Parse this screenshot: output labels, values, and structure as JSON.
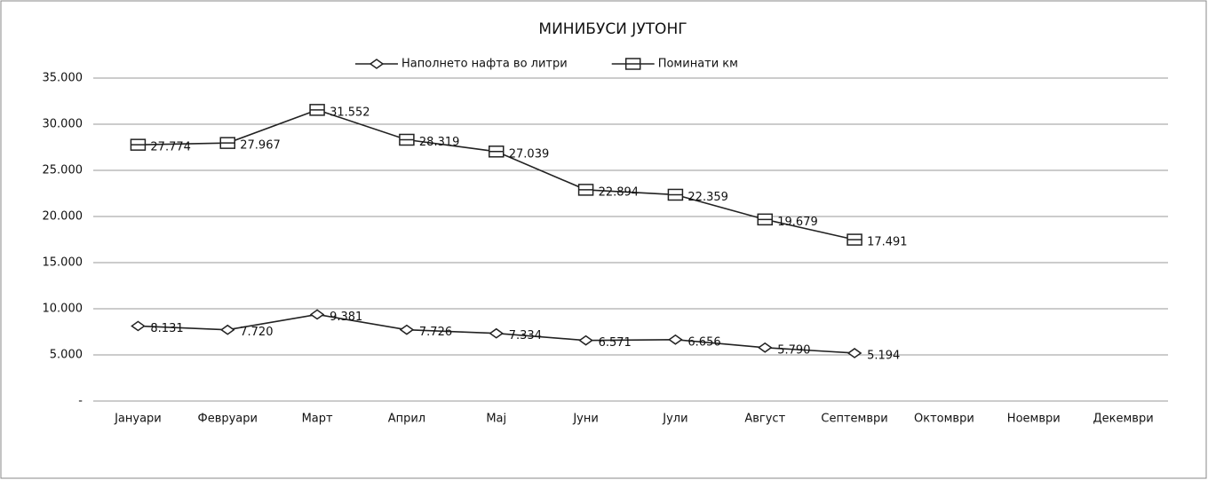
{
  "chart_data": {
    "type": "line",
    "title": "МИНИБУСИ ЈУТОНГ",
    "categories": [
      "Јануари",
      "Февруари",
      "Март",
      "Април",
      "Мај",
      "Јуни",
      "Јули",
      "Август",
      "Септември",
      "Октомври",
      "Ноември",
      "Декември"
    ],
    "series": [
      {
        "name": "Наполнето нафта во литри",
        "color": "#222222",
        "marker": "diamond",
        "values": [
          8131,
          7720,
          9381,
          7726,
          7334,
          6571,
          6656,
          5790,
          5194,
          null,
          null,
          null
        ],
        "value_labels": [
          "8.131",
          "7.720",
          "9.381",
          "7.726",
          "7.334",
          "6.571",
          "6.656",
          "5.790",
          "5.194",
          null,
          null,
          null
        ]
      },
      {
        "name": "Поминати км",
        "color": "#222222",
        "marker": "square",
        "values": [
          27774,
          27967,
          31552,
          28319,
          27039,
          22894,
          22359,
          19679,
          17491,
          null,
          null,
          null
        ],
        "value_labels": [
          "27.774",
          "27.967",
          "31.552",
          "28.319",
          "27.039",
          "22.894",
          "22.359",
          "19.679",
          "17.491",
          null,
          null,
          null
        ]
      }
    ],
    "ylim": [
      0,
      35000
    ],
    "yticks": [
      {
        "value": 0,
        "label": "-"
      },
      {
        "value": 5000,
        "label": "5.000"
      },
      {
        "value": 10000,
        "label": "10.000"
      },
      {
        "value": 15000,
        "label": "15.000"
      },
      {
        "value": 20000,
        "label": "20.000"
      },
      {
        "value": 25000,
        "label": "25.000"
      },
      {
        "value": 30000,
        "label": "30.000"
      },
      {
        "value": 35000,
        "label": "35.000"
      }
    ],
    "grid": true,
    "legend": "top"
  }
}
